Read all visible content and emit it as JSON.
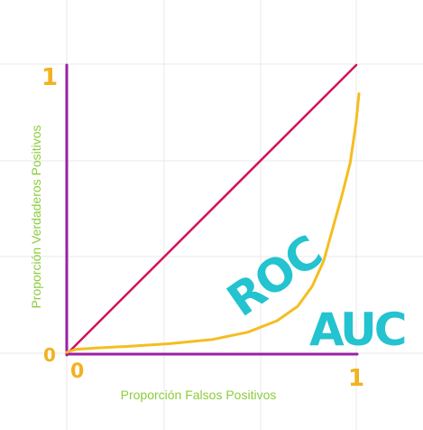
{
  "labels": {
    "x_axis_title": "Proporción Falsos Positivos",
    "y_axis_title": "Proporción Verdaderos Positivos",
    "y_top": "1",
    "y_origin": "0",
    "x_origin": "0",
    "x_right": "1",
    "roc": "ROC",
    "auc": "AUC"
  },
  "colors": {
    "background": "#ffffff",
    "grid": "#e6e6e6",
    "axes": "#9b1fa6",
    "diagonal": "#d0135f",
    "curve": "#f5bd22",
    "ink_orange": "#f2b21f",
    "ink_cyan": "#23c3cf",
    "axis_title": "#8ccc3c"
  },
  "roc_curve_points": [
    [
      0.0,
      0.0
    ],
    [
      0.03,
      0.01
    ],
    [
      0.1,
      0.015
    ],
    [
      0.2,
      0.02
    ],
    [
      0.35,
      0.03
    ],
    [
      0.5,
      0.045
    ],
    [
      0.62,
      0.07
    ],
    [
      0.72,
      0.11
    ],
    [
      0.79,
      0.16
    ],
    [
      0.84,
      0.23
    ],
    [
      0.88,
      0.32
    ],
    [
      0.91,
      0.43
    ],
    [
      0.94,
      0.54
    ],
    [
      0.97,
      0.66
    ],
    [
      0.99,
      0.8
    ],
    [
      1.0,
      0.9
    ]
  ]
}
